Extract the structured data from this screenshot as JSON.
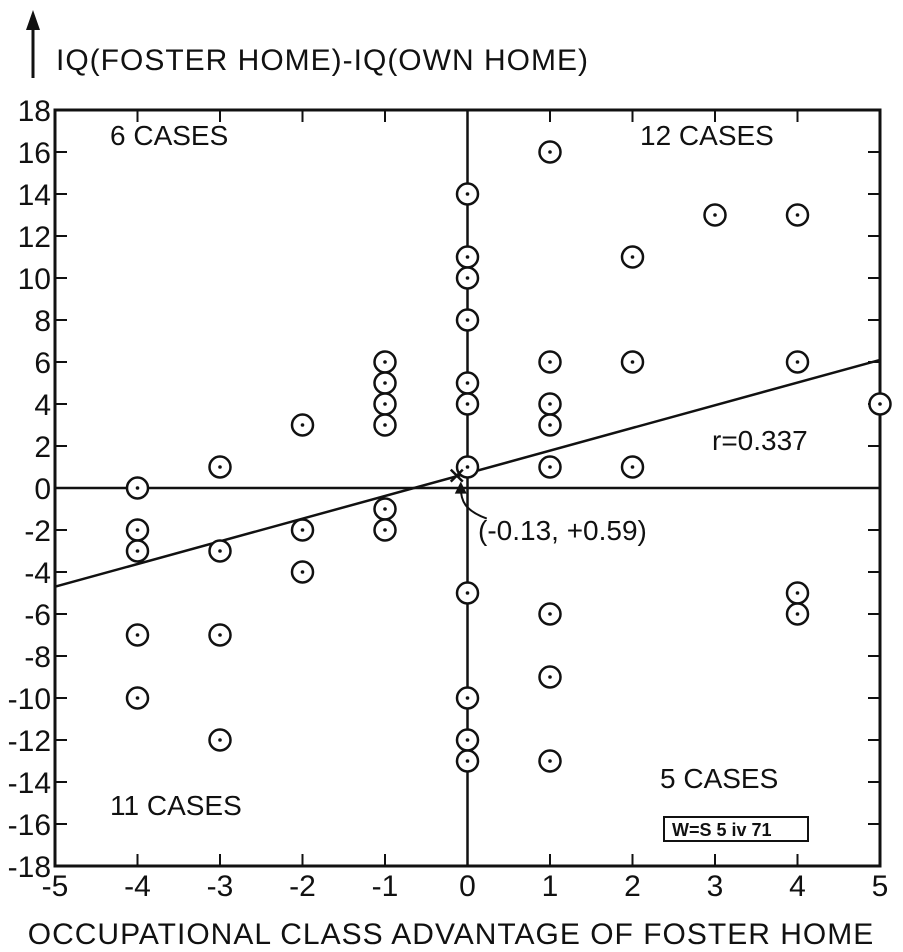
{
  "chart_data": {
    "type": "scatter",
    "title": "IQ(FOSTER HOME)-IQ(OWN HOME)",
    "xlabel": "OCCUPATIONAL CLASS ADVANTAGE OF FOSTER HOME",
    "ylabel": "IQ(FOSTER HOME)-IQ(OWN HOME)",
    "xlim": [
      -5,
      5
    ],
    "ylim": [
      -18,
      18
    ],
    "x_ticks": [
      -5,
      -4,
      -3,
      -2,
      -1,
      0,
      1,
      2,
      3,
      4,
      5
    ],
    "y_ticks": [
      18,
      16,
      14,
      12,
      10,
      8,
      6,
      4,
      2,
      0,
      -2,
      -4,
      -6,
      -8,
      -10,
      -12,
      -14,
      -16,
      -18
    ],
    "x_tick_labels": [
      "-5",
      "-4",
      "-3",
      "-2",
      "-1",
      "0",
      "1",
      "2",
      "3",
      "4",
      "5"
    ],
    "y_tick_labels": [
      "18",
      "16",
      "14",
      "12",
      "10",
      "8",
      "6",
      "4",
      "2",
      "0",
      "-2",
      "-4",
      "-6",
      "-8",
      "-10",
      "-12",
      "-14",
      "-16",
      "-18"
    ],
    "points": [
      {
        "x": -4,
        "y": 0
      },
      {
        "x": -4,
        "y": -2
      },
      {
        "x": -4,
        "y": -3
      },
      {
        "x": -4,
        "y": -7
      },
      {
        "x": -4,
        "y": -10
      },
      {
        "x": -3,
        "y": 1
      },
      {
        "x": -3,
        "y": -3
      },
      {
        "x": -3,
        "y": -7
      },
      {
        "x": -3,
        "y": -12
      },
      {
        "x": -2,
        "y": 3
      },
      {
        "x": -2,
        "y": -2
      },
      {
        "x": -2,
        "y": -4
      },
      {
        "x": -1,
        "y": 6
      },
      {
        "x": -1,
        "y": 5
      },
      {
        "x": -1,
        "y": 4
      },
      {
        "x": -1,
        "y": 3
      },
      {
        "x": -1,
        "y": -1
      },
      {
        "x": -1,
        "y": -2
      },
      {
        "x": 0,
        "y": 14
      },
      {
        "x": 0,
        "y": 11
      },
      {
        "x": 0,
        "y": 10
      },
      {
        "x": 0,
        "y": 8
      },
      {
        "x": 0,
        "y": 5
      },
      {
        "x": 0,
        "y": 4
      },
      {
        "x": 0,
        "y": 1
      },
      {
        "x": 0,
        "y": -5
      },
      {
        "x": 0,
        "y": -10
      },
      {
        "x": 0,
        "y": -12
      },
      {
        "x": 0,
        "y": -13
      },
      {
        "x": 1,
        "y": 16
      },
      {
        "x": 1,
        "y": 6
      },
      {
        "x": 1,
        "y": 4
      },
      {
        "x": 1,
        "y": 3
      },
      {
        "x": 1,
        "y": 1
      },
      {
        "x": 1,
        "y": -6
      },
      {
        "x": 1,
        "y": -9
      },
      {
        "x": 1,
        "y": -13
      },
      {
        "x": 2,
        "y": 11
      },
      {
        "x": 2,
        "y": 6
      },
      {
        "x": 2,
        "y": 1
      },
      {
        "x": 3,
        "y": 13
      },
      {
        "x": 4,
        "y": 13
      },
      {
        "x": 4,
        "y": 6
      },
      {
        "x": 4,
        "y": -5
      },
      {
        "x": 4,
        "y": -6
      },
      {
        "x": 5,
        "y": 4
      }
    ],
    "regression_line": {
      "x": [
        -5,
        5
      ],
      "y": [
        -4.7,
        6.1
      ]
    },
    "mean_point": {
      "x": -0.13,
      "y": 0.59,
      "label": "(-0.13, +0.59)"
    },
    "annotations": {
      "r_value": "r=0.337",
      "q_top_left": "6 CASES",
      "q_top_right": "12 CASES",
      "q_bottom_right": "5 CASES",
      "q_bottom_left": "11 CASES",
      "stamp": "W=S 5 iv 71"
    },
    "grid": false
  }
}
